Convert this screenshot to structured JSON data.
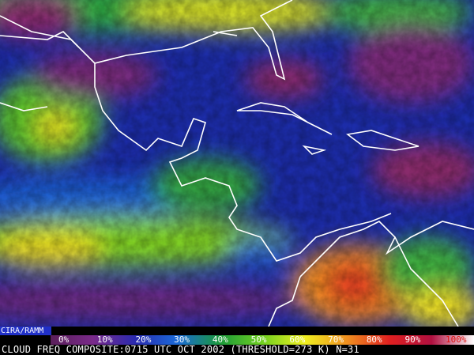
{
  "credit": "CIRA/RAMM",
  "legend": [
    {
      "label": "0%",
      "color": "#5a1f5a"
    },
    {
      "label": "10%",
      "color": "#7a2a8a"
    },
    {
      "label": "20%",
      "color": "#2a2ab0"
    },
    {
      "label": "30%",
      "color": "#1a6ad8"
    },
    {
      "label": "40%",
      "color": "#1a9a3a"
    },
    {
      "label": "50%",
      "color": "#70d020"
    },
    {
      "label": "60%",
      "color": "#f0f020"
    },
    {
      "label": "70%",
      "color": "#f09020"
    },
    {
      "label": "80%",
      "color": "#e02020"
    },
    {
      "label": "90%",
      "color": "#b01040"
    },
    {
      "label": "100%",
      "color": "#ffffff"
    }
  ],
  "caption": "CLOUD FREQ COMPOSITE:0715 UTC OCT 2002 (THRESHOLD=273 K) N=31"
}
